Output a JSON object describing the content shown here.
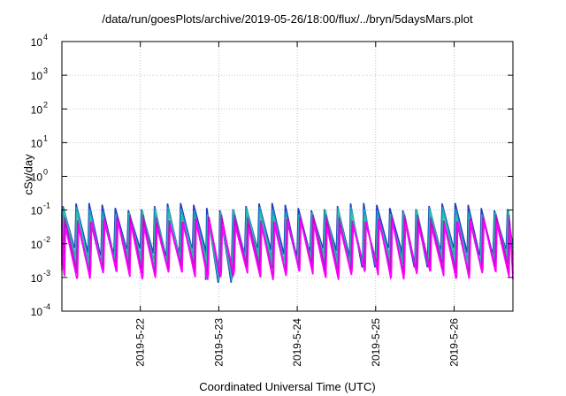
{
  "chart_data": {
    "type": "line",
    "title": "/data/run/goesPlots/archive/2019-05-26/18:00/flux/../bryn/5daysMars.plot",
    "xlabel": "Coordinated Universal Time (UTC)",
    "ylabel": "cSv/day",
    "y_scale": "log",
    "ylim": [
      0.0001,
      10000
    ],
    "y_ticks": [
      {
        "label": "10",
        "exp": "-4"
      },
      {
        "label": "10",
        "exp": "-3"
      },
      {
        "label": "10",
        "exp": "-2"
      },
      {
        "label": "10",
        "exp": "-1"
      },
      {
        "label": "10",
        "exp": "0"
      },
      {
        "label": "10",
        "exp": "1"
      },
      {
        "label": "10",
        "exp": "2"
      },
      {
        "label": "10",
        "exp": "3"
      },
      {
        "label": "10",
        "exp": "4"
      }
    ],
    "xlim": [
      "2019-05-21 00:00",
      "2019-05-26 18:00"
    ],
    "x_ticks": [
      "2019-5-22",
      "2019-5-23",
      "2019-5-24",
      "2019-5-25",
      "2019-5-26"
    ],
    "grid": true,
    "pattern": {
      "cycles_per_day": 6,
      "cycle_shape": "sawtooth",
      "note_drops": [
        {
          "time": "2019-05-23 02:00",
          "min": 0.0007
        },
        {
          "time": "2019-05-24 22:00",
          "min": 0.002
        },
        {
          "time": "2019-05-25 15:00",
          "min": 0.002
        }
      ]
    },
    "series": [
      {
        "color": "#1f3fbf",
        "peak": 0.13,
        "trough": 0.006
      },
      {
        "color": "#1f9fbf",
        "peak": 0.1,
        "trough": 0.004
      },
      {
        "color": "#2fbf9f",
        "peak": 0.08,
        "trough": 0.003
      },
      {
        "color": "#7f3fbf",
        "peak": 0.06,
        "trough": 0.0022
      },
      {
        "color": "#d000d0",
        "peak": 0.05,
        "trough": 0.0016
      },
      {
        "color": "#ff00ff",
        "peak": 0.04,
        "trough": 0.0012
      }
    ]
  }
}
